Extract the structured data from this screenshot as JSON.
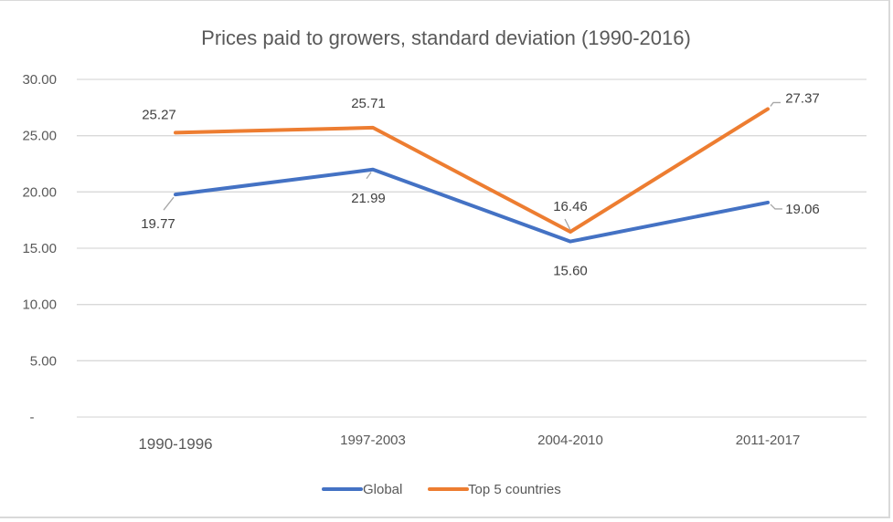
{
  "chart_data": {
    "type": "line",
    "title": "Prices paid to growers, standard deviation (1990-2016)",
    "xlabel": "",
    "ylabel": "",
    "categories": [
      "1990-1996",
      "1997-2003",
      "2004-2010",
      "2011-2017"
    ],
    "ylim": [
      0,
      30
    ],
    "yticks": [
      0,
      5,
      10,
      15,
      20,
      25,
      30
    ],
    "ytick_labels": [
      "-",
      "5.00",
      "10.00",
      "15.00",
      "20.00",
      "25.00",
      "30.00"
    ],
    "grid": true,
    "legend_position": "bottom",
    "series": [
      {
        "name": "Global",
        "color": "#4472c4",
        "values": [
          19.77,
          21.99,
          15.6,
          19.06
        ],
        "labels": [
          "19.77",
          "21.99",
          "15.60",
          "19.06"
        ]
      },
      {
        "name": "Top 5 countries",
        "color": "#ed7d31",
        "values": [
          25.27,
          25.71,
          16.46,
          27.37
        ],
        "labels": [
          "25.27",
          "25.71",
          "16.46",
          "27.37"
        ]
      }
    ]
  }
}
